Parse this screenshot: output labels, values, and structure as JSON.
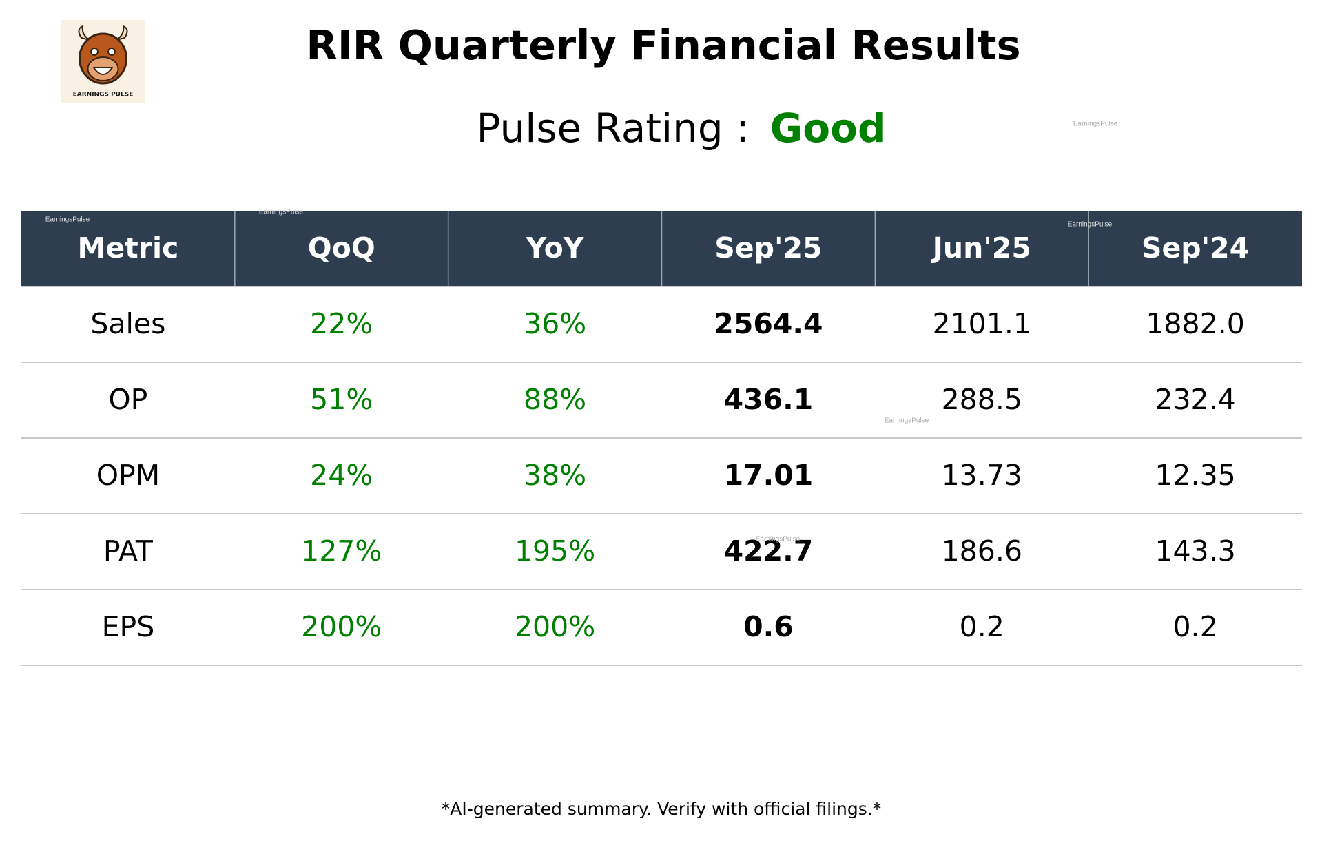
{
  "header": {
    "title": "RIR Quarterly Financial Results",
    "rating_label": "Pulse Rating :",
    "rating": "Good",
    "logo_text": "EARNINGS PULSE"
  },
  "watermark": "EarningsPulse",
  "table": {
    "columns": [
      "Metric",
      "QoQ",
      "YoY",
      "Sep'25",
      "Jun'25",
      "Sep'24"
    ],
    "rows": [
      [
        "Sales",
        "22%",
        "36%",
        "2564.4",
        "2101.1",
        "1882.0"
      ],
      [
        "OP",
        "51%",
        "88%",
        "436.1",
        "288.5",
        "232.4"
      ],
      [
        "OPM",
        "24%",
        "38%",
        "17.01",
        "13.73",
        "12.35"
      ],
      [
        "PAT",
        "127%",
        "195%",
        "422.7",
        "186.6",
        "143.3"
      ],
      [
        "EPS",
        "200%",
        "200%",
        "0.6",
        "0.2",
        "0.2"
      ]
    ]
  },
  "footer": {
    "note": "*AI-generated summary. Verify with official filings.*"
  }
}
